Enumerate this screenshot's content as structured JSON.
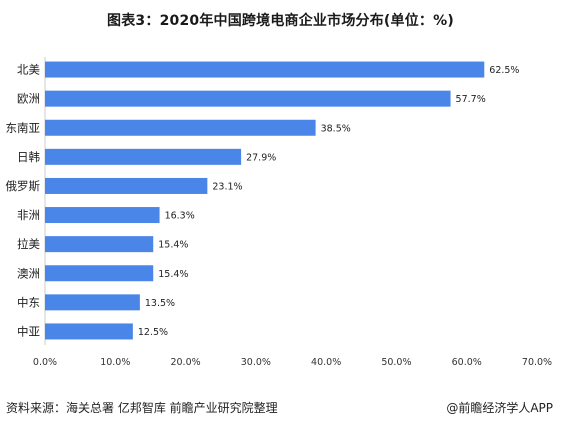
{
  "chart_data": {
    "type": "bar",
    "orientation": "horizontal",
    "title": "图表3：2020年中国跨境电商企业市场分布(单位：%)",
    "categories": [
      "北美",
      "欧洲",
      "东南亚",
      "日韩",
      "俄罗斯",
      "非洲",
      "拉美",
      "澳洲",
      "中东",
      "中亚"
    ],
    "values": [
      62.5,
      57.7,
      38.5,
      27.9,
      23.1,
      16.3,
      15.4,
      15.4,
      13.5,
      12.5
    ],
    "value_labels": [
      "62.5%",
      "57.7%",
      "38.5%",
      "27.9%",
      "23.1%",
      "16.3%",
      "15.4%",
      "15.4%",
      "13.5%",
      "12.5%"
    ],
    "xlim": [
      0,
      70
    ],
    "ticks": [
      "0.0%",
      "10.0%",
      "20.0%",
      "30.0%",
      "40.0%",
      "50.0%",
      "60.0%",
      "70.0%"
    ],
    "bar_color": "#4a86e8",
    "grid": false
  },
  "footer": {
    "source": "资料来源：海关总署  亿邦智库  前瞻产业研究院整理",
    "brand": "@前瞻经济学人APP"
  }
}
